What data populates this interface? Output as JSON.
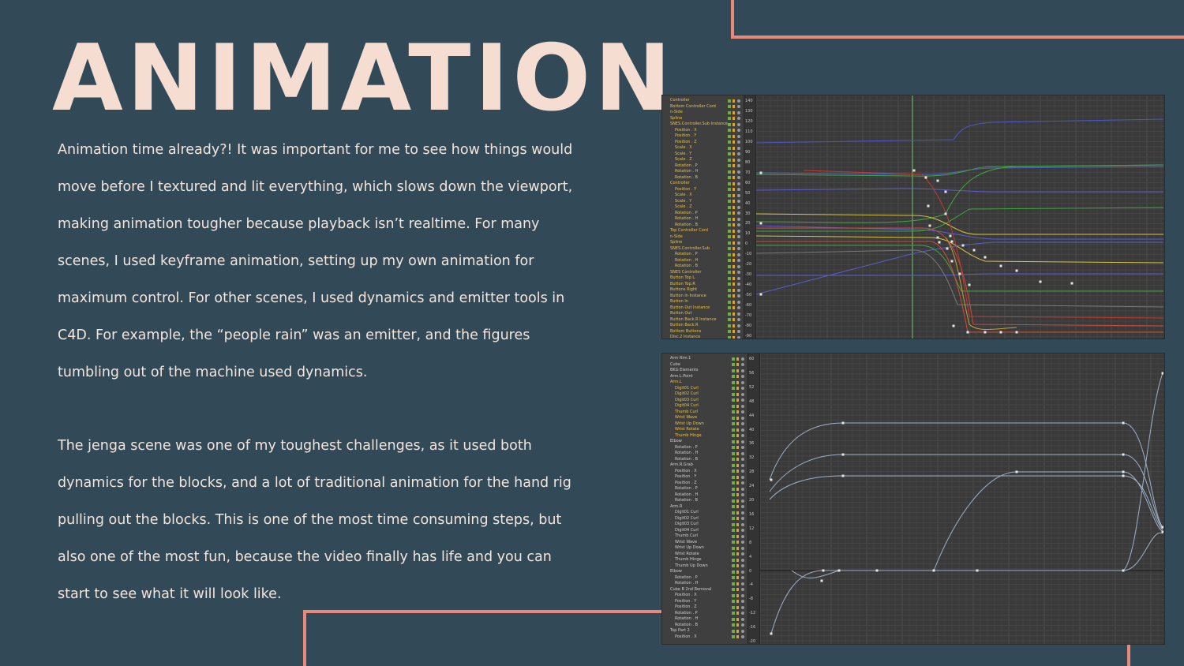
{
  "title": "ANIMATION",
  "paragraph1": "Animation time already?! It was important for me to see how things would move before I textured and lit everything, which slows down the viewport, making animation tougher because playback isn’t realtime. For many scenes, I used keyframe animation, setting up my own animation for maximum control. For other scenes, I used dynamics and emitter tools in C4D. For example, the “people rain” was an emitter, and the figures tumbling out of the machine used dynamics.",
  "paragraph2": "The jenga scene was one of my toughest challenges, as it used both dynamics for the blocks, and a lot of traditional animation for the hand rig pulling out the blocks. This is one of the most time consuming steps, but also one of the most fun, because the video finally has life and you can start to see what it will look like.",
  "colors": {
    "background": "#324a57",
    "accent": "#e9897a",
    "title": "#f6ddd2",
    "body_text": "#f3e4dc"
  },
  "screenshot1": {
    "tracks": [
      {
        "label": "Controller",
        "level": 1,
        "hl": true
      },
      {
        "label": "Bottom Controller Cord",
        "level": 1,
        "hl": true
      },
      {
        "label": "n-Side",
        "level": 1,
        "hl": true
      },
      {
        "label": "Spline",
        "level": 1,
        "hl": true
      },
      {
        "label": "SNES.Controller.Sub Instance",
        "level": 1,
        "hl": true
      },
      {
        "label": "Position . X",
        "level": 2,
        "hl": true
      },
      {
        "label": "Position . Y",
        "level": 2,
        "hl": true
      },
      {
        "label": "Position . Z",
        "level": 2,
        "hl": true
      },
      {
        "label": "Scale . X",
        "level": 2,
        "hl": true
      },
      {
        "label": "Scale . Y",
        "level": 2,
        "hl": true
      },
      {
        "label": "Scale . Z",
        "level": 2,
        "hl": true
      },
      {
        "label": "Rotation . P",
        "level": 2,
        "hl": true
      },
      {
        "label": "Rotation . H",
        "level": 2,
        "hl": true
      },
      {
        "label": "Rotation . B",
        "level": 2,
        "hl": true
      },
      {
        "label": "Controller",
        "level": 1,
        "hl": true
      },
      {
        "label": "Position . Y",
        "level": 2,
        "hl": true
      },
      {
        "label": "Scale . X",
        "level": 2,
        "hl": true
      },
      {
        "label": "Scale . Y",
        "level": 2,
        "hl": true
      },
      {
        "label": "Scale . Z",
        "level": 2,
        "hl": true
      },
      {
        "label": "Rotation . P",
        "level": 2,
        "hl": true
      },
      {
        "label": "Rotation . H",
        "level": 2,
        "hl": true
      },
      {
        "label": "Rotation . B",
        "level": 2,
        "hl": true
      },
      {
        "label": "Top Controller Cord",
        "level": 1,
        "hl": true
      },
      {
        "label": "n-Side",
        "level": 1,
        "hl": true
      },
      {
        "label": "Spline",
        "level": 1,
        "hl": true
      },
      {
        "label": "SNES.Controller.Sub",
        "level": 1,
        "hl": true
      },
      {
        "label": "Rotation . P",
        "level": 2,
        "hl": true
      },
      {
        "label": "Rotation . H",
        "level": 2,
        "hl": true
      },
      {
        "label": "Rotation . B",
        "level": 2,
        "hl": true
      },
      {
        "label": "SNES Controller",
        "level": 1,
        "hl": true
      },
      {
        "label": "Button Top L",
        "level": 1,
        "hl": true
      },
      {
        "label": "Button Top.R",
        "level": 1,
        "hl": true
      },
      {
        "label": "Buttons Right",
        "level": 1,
        "hl": true
      },
      {
        "label": "Button In Instance",
        "level": 1,
        "hl": true
      },
      {
        "label": "Button In",
        "level": 1,
        "hl": true
      },
      {
        "label": "Button Out Instance",
        "level": 1,
        "hl": true
      },
      {
        "label": "Button Out",
        "level": 1,
        "hl": true
      },
      {
        "label": "Button Back.R Instance",
        "level": 1,
        "hl": true
      },
      {
        "label": "Button Back.R",
        "level": 1,
        "hl": true
      },
      {
        "label": "Bottom Buttons",
        "level": 1,
        "hl": true
      },
      {
        "label": "Disc.2 Instance",
        "level": 1,
        "hl": true
      }
    ],
    "ruler": [
      "140",
      "130",
      "120",
      "110",
      "100",
      "90",
      "80",
      "70",
      "60",
      "50",
      "40",
      "30",
      "20",
      "10",
      "0",
      "-10",
      "-20",
      "-30",
      "-40",
      "-50",
      "-60",
      "-70",
      "-80",
      "-90"
    ]
  },
  "screenshot2": {
    "tracks": [
      {
        "label": "Arm Rim.1",
        "level": 1,
        "hl": false
      },
      {
        "label": "Cube",
        "level": 1,
        "hl": false
      },
      {
        "label": "BKG Elements",
        "level": 1,
        "hl": false
      },
      {
        "label": "Arm.L.Point",
        "level": 1,
        "hl": false
      },
      {
        "label": "Arm.L",
        "level": 1,
        "hl": true
      },
      {
        "label": "Digit01 Curl",
        "level": 2,
        "hl": true
      },
      {
        "label": "Digit02 Curl",
        "level": 2,
        "hl": true
      },
      {
        "label": "Digit03 Curl",
        "level": 2,
        "hl": true
      },
      {
        "label": "Digit04 Curl",
        "level": 2,
        "hl": true
      },
      {
        "label": "Thumb Curl",
        "level": 2,
        "hl": true
      },
      {
        "label": "Wrist Wave",
        "level": 2,
        "hl": true
      },
      {
        "label": "Wrist Up Down",
        "level": 2,
        "hl": true
      },
      {
        "label": "Wrist Rotate",
        "level": 2,
        "hl": true
      },
      {
        "label": "Thumb Hinge",
        "level": 2,
        "hl": true
      },
      {
        "label": "Elbow",
        "level": 1,
        "hl": false
      },
      {
        "label": "Rotation . P",
        "level": 2,
        "hl": false
      },
      {
        "label": "Rotation . H",
        "level": 2,
        "hl": false
      },
      {
        "label": "Rotation . B",
        "level": 2,
        "hl": false
      },
      {
        "label": "Arm.R.Grab",
        "level": 1,
        "hl": false
      },
      {
        "label": "Position . X",
        "level": 2,
        "hl": false
      },
      {
        "label": "Position . Y",
        "level": 2,
        "hl": false
      },
      {
        "label": "Position . Z",
        "level": 2,
        "hl": false
      },
      {
        "label": "Rotation . P",
        "level": 2,
        "hl": false
      },
      {
        "label": "Rotation . H",
        "level": 2,
        "hl": false
      },
      {
        "label": "Rotation . B",
        "level": 2,
        "hl": false
      },
      {
        "label": "Arm.R",
        "level": 1,
        "hl": false
      },
      {
        "label": "Digit01 Curl",
        "level": 2,
        "hl": false
      },
      {
        "label": "Digit02 Curl",
        "level": 2,
        "hl": false
      },
      {
        "label": "Digit03 Curl",
        "level": 2,
        "hl": false
      },
      {
        "label": "Digit04 Curl",
        "level": 2,
        "hl": false
      },
      {
        "label": "Thumb Curl",
        "level": 2,
        "hl": false
      },
      {
        "label": "Wrist Wave",
        "level": 2,
        "hl": false
      },
      {
        "label": "Wrist Up Down",
        "level": 2,
        "hl": false
      },
      {
        "label": "Wrist Rotate",
        "level": 2,
        "hl": false
      },
      {
        "label": "Thumb Hinge",
        "level": 2,
        "hl": false
      },
      {
        "label": "Thumb Up Down",
        "level": 2,
        "hl": false
      },
      {
        "label": "Elbow",
        "level": 1,
        "hl": false
      },
      {
        "label": "Rotation . P",
        "level": 2,
        "hl": false
      },
      {
        "label": "Rotation . H",
        "level": 2,
        "hl": false
      },
      {
        "label": "Cube B 2nd Removal",
        "level": 1,
        "hl": false
      },
      {
        "label": "Position . X",
        "level": 2,
        "hl": false
      },
      {
        "label": "Position . Y",
        "level": 2,
        "hl": false
      },
      {
        "label": "Position . Z",
        "level": 2,
        "hl": false
      },
      {
        "label": "Rotation . P",
        "level": 2,
        "hl": false
      },
      {
        "label": "Rotation . H",
        "level": 2,
        "hl": false
      },
      {
        "label": "Rotation . B",
        "level": 2,
        "hl": false
      },
      {
        "label": "Top Part 2",
        "level": 1,
        "hl": false
      },
      {
        "label": "Position . X",
        "level": 2,
        "hl": false
      }
    ],
    "ruler": [
      "60",
      "56",
      "52",
      "48",
      "44",
      "40",
      "36",
      "32",
      "28",
      "24",
      "20",
      "16",
      "12",
      "8",
      "4",
      "0",
      "-4",
      "-8",
      "-12",
      "-16",
      "-20"
    ]
  }
}
